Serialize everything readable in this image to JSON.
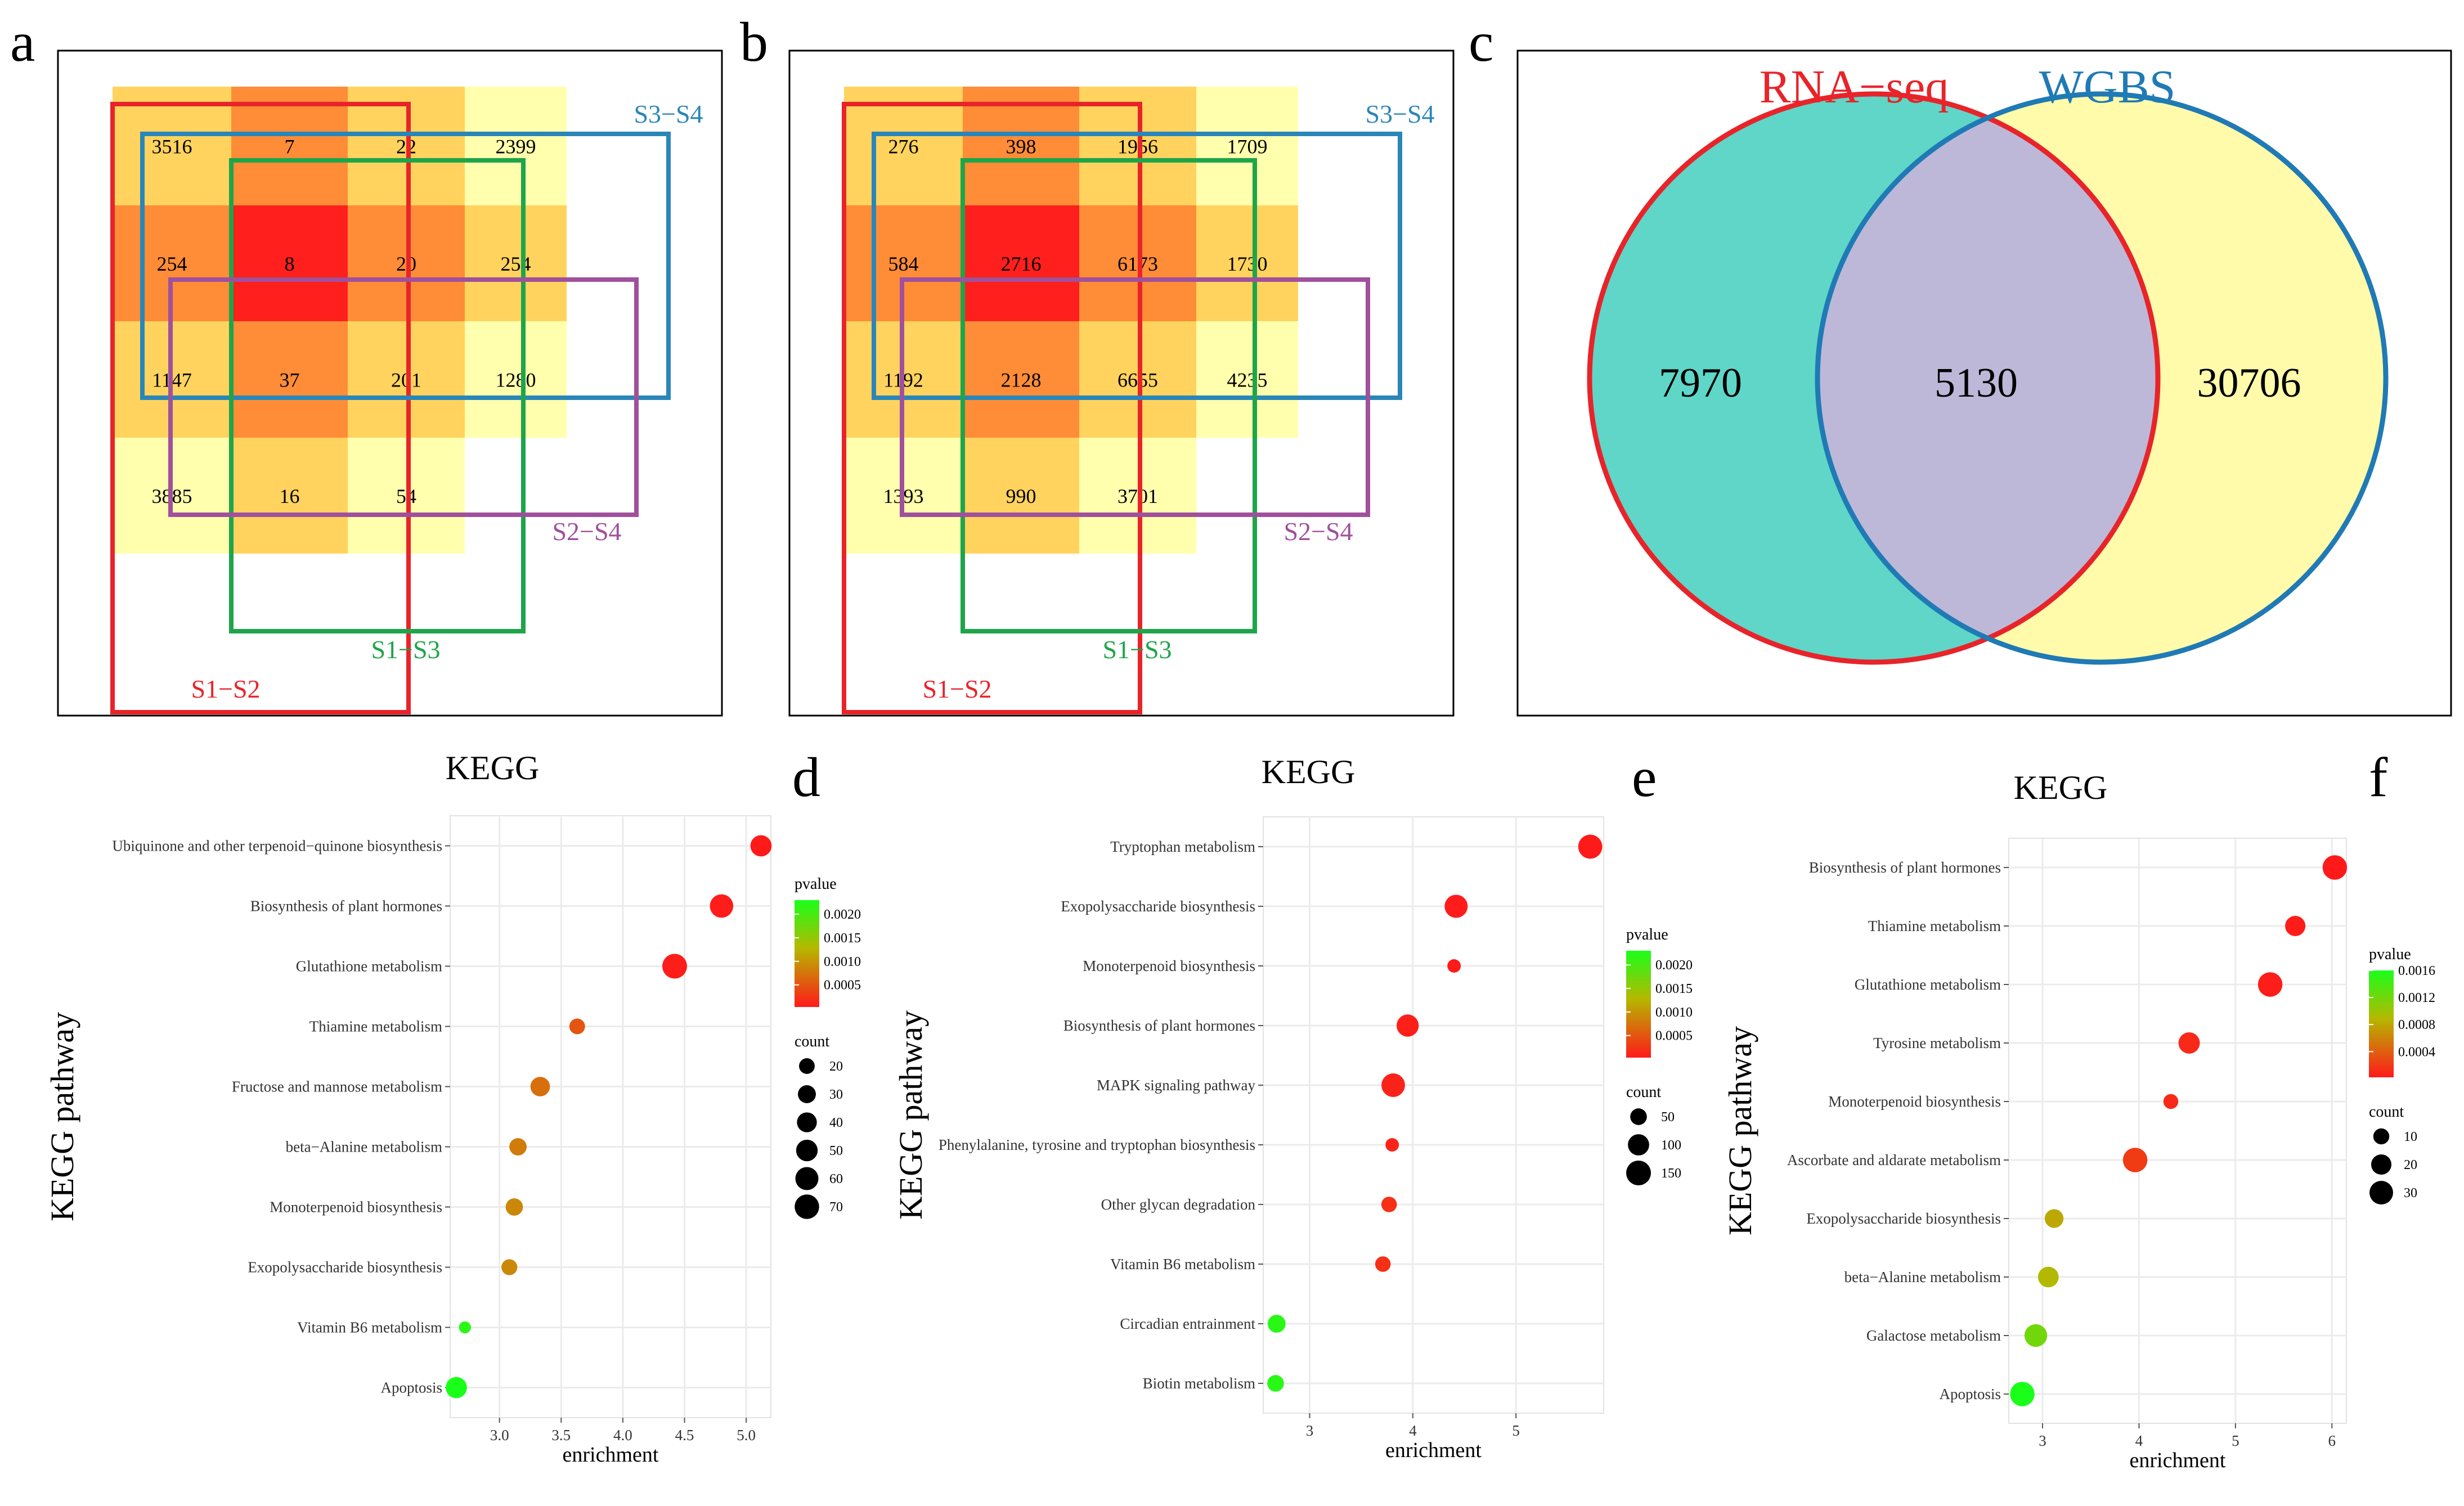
{
  "panels": {
    "a": "a",
    "b": "b",
    "c": "c",
    "d": "d",
    "e": "e",
    "f": "f"
  },
  "colors": {
    "s1s2": "#e8242a",
    "s1s3": "#1ea54a",
    "s3s4": "#2a86b8",
    "s2s4": "#a0509c",
    "rna": "#e8242a",
    "wgbs": "#1f7ab5",
    "venn_left": "#5fd6c7",
    "venn_right": "#fffbaa",
    "venn_mid": "#bdb8d8",
    "heat1": "#ffffad",
    "heat2": "#ffd35e",
    "heat3": "#ff8c37",
    "heat4": "#ff1f1c",
    "p_low": "#ff1a1a",
    "p_high": "#1aff1a",
    "grid_bg": "#ffffff",
    "grid_line": "#ebebeb"
  },
  "venn4_labels": {
    "s1s2": "S1−S2",
    "s1s3": "S1−S3",
    "s3s4": "S3−S4",
    "s2s4": "S2−S4"
  },
  "venn4": [
    {
      "panel": "a",
      "cells": [
        [
          {
            "v": "3516",
            "lvl": 2
          },
          {
            "v": "7",
            "lvl": 3
          },
          {
            "v": "22",
            "lvl": 2
          },
          {
            "v": "2399",
            "lvl": 1
          }
        ],
        [
          {
            "v": "254",
            "lvl": 3
          },
          {
            "v": "8",
            "lvl": 4
          },
          {
            "v": "20",
            "lvl": 3
          },
          {
            "v": "254",
            "lvl": 2
          }
        ],
        [
          {
            "v": "1147",
            "lvl": 2
          },
          {
            "v": "37",
            "lvl": 3
          },
          {
            "v": "201",
            "lvl": 2
          },
          {
            "v": "1280",
            "lvl": 1
          }
        ],
        [
          {
            "v": "3885",
            "lvl": 1
          },
          {
            "v": "16",
            "lvl": 2
          },
          {
            "v": "54",
            "lvl": 1
          },
          {
            "v": "",
            "lvl": 0
          }
        ]
      ]
    },
    {
      "panel": "b",
      "cells": [
        [
          {
            "v": "276",
            "lvl": 2
          },
          {
            "v": "398",
            "lvl": 3
          },
          {
            "v": "1956",
            "lvl": 2
          },
          {
            "v": "1709",
            "lvl": 1
          }
        ],
        [
          {
            "v": "584",
            "lvl": 3
          },
          {
            "v": "2716",
            "lvl": 4
          },
          {
            "v": "6173",
            "lvl": 3
          },
          {
            "v": "1730",
            "lvl": 2
          }
        ],
        [
          {
            "v": "1192",
            "lvl": 2
          },
          {
            "v": "2128",
            "lvl": 3
          },
          {
            "v": "6655",
            "lvl": 2
          },
          {
            "v": "4235",
            "lvl": 1
          }
        ],
        [
          {
            "v": "1393",
            "lvl": 1
          },
          {
            "v": "990",
            "lvl": 2
          },
          {
            "v": "3701",
            "lvl": 1
          },
          {
            "v": "",
            "lvl": 0
          }
        ]
      ]
    }
  ],
  "venn2": {
    "left_label": "RNA−seq",
    "right_label": "WGBS",
    "left_only": "7970",
    "both": "5130",
    "right_only": "30706"
  },
  "chart_data": [
    {
      "type": "scatter",
      "panel": "d",
      "title": "KEGG",
      "xlabel": "enrichment",
      "ylabel": "KEGG pathway",
      "xlim": [
        2.6,
        5.2
      ],
      "xticks": [
        "3.0",
        "3.5",
        "4.0",
        "4.5",
        "5.0"
      ],
      "pathways": [
        "Ubiquinone and other terpenoid−quinone biosynthesis",
        "Biosynthesis of plant hormones",
        "Glutathione metabolism",
        "Thiamine metabolism",
        "Fructose and mannose metabolism",
        "beta−Alanine metabolism",
        "Monoterpenoid biosynthesis",
        "Exopolysaccharide biosynthesis",
        "Vitamin B6 metabolism",
        "Apoptosis"
      ],
      "enrichment": [
        5.12,
        4.8,
        4.42,
        3.63,
        3.33,
        3.15,
        3.12,
        3.08,
        2.72,
        2.65
      ],
      "count": [
        48,
        62,
        72,
        20,
        38,
        27,
        27,
        21,
        8,
        48
      ],
      "pvalue": [
        3e-05,
        5e-05,
        6e-05,
        0.0005,
        0.0007,
        0.0008,
        0.0009,
        0.0009,
        0.0022,
        0.0023
      ],
      "color_legend": {
        "title": "pvalue",
        "ticks": [
          "0.0020",
          "0.0015",
          "0.0010",
          "0.0005"
        ],
        "min": 3e-05,
        "max": 0.0023
      },
      "size_legend": {
        "title": "count",
        "ticks": [
          "20",
          "30",
          "40",
          "50",
          "60",
          "70"
        ]
      }
    },
    {
      "type": "scatter",
      "panel": "e",
      "title": "KEGG",
      "xlabel": "enrichment",
      "ylabel": "KEGG pathway",
      "xlim": [
        2.55,
        5.85
      ],
      "xticks": [
        "3",
        "4",
        "5"
      ],
      "pathways": [
        "Tryptophan metabolism",
        "Exopolysaccharide biosynthesis",
        "Monoterpenoid biosynthesis",
        "Biosynthesis of plant hormones",
        "MAPK signaling pathway",
        "Phenylalanine, tyrosine and tryptophan biosynthesis",
        "Other glycan degradation",
        "Vitamin B6 metabolism",
        "Circadian entrainment",
        "Biotin metabolism"
      ],
      "enrichment": [
        5.72,
        4.42,
        4.4,
        3.95,
        3.81,
        3.8,
        3.77,
        3.71,
        2.68,
        2.67
      ],
      "count": [
        140,
        125,
        25,
        112,
        132,
        25,
        40,
        40,
        62,
        50
      ],
      "pvalue": [
        3e-05,
        5e-05,
        4e-05,
        8e-05,
        0.0001,
        0.0001,
        0.0002,
        0.0002,
        0.0022,
        0.0022
      ],
      "color_legend": {
        "title": "pvalue",
        "ticks": [
          "0.0020",
          "0.0015",
          "0.0010",
          "0.0005"
        ],
        "min": 3e-05,
        "max": 0.0023
      },
      "size_legend": {
        "title": "count",
        "ticks": [
          "50",
          "100",
          "150"
        ]
      }
    },
    {
      "type": "scatter",
      "panel": "f",
      "title": "KEGG",
      "xlabel": "enrichment",
      "ylabel": "KEGG pathway",
      "xlim": [
        2.65,
        6.15
      ],
      "xticks": [
        "3",
        "4",
        "5",
        "6"
      ],
      "pathways": [
        "Biosynthesis of plant hormones",
        "Thiamine metabolism",
        "Glutathione metabolism",
        "Tyrosine metabolism",
        "Monoterpenoid biosynthesis",
        "Ascorbate and aldarate metabolism",
        "Exopolysaccharide biosynthesis",
        "beta−Alanine metabolism",
        "Galactose metabolism",
        "Apoptosis"
      ],
      "enrichment": [
        6.03,
        5.62,
        5.36,
        4.52,
        4.33,
        3.96,
        3.12,
        3.06,
        2.93,
        2.79
      ],
      "count": [
        33,
        20,
        33,
        23,
        8,
        33,
        16,
        21,
        27,
        33
      ],
      "pvalue": [
        2e-05,
        3e-05,
        4e-05,
        0.0001,
        0.0001,
        0.0002,
        0.0008,
        0.0009,
        0.0012,
        0.0016
      ],
      "color_legend": {
        "title": "pvalue",
        "ticks": [
          "0.0016",
          "0.0012",
          "0.0008",
          "0.0004"
        ],
        "min": 2e-05,
        "max": 0.0016
      },
      "size_legend": {
        "title": "count",
        "ticks": [
          "10",
          "20",
          "30"
        ]
      }
    }
  ]
}
